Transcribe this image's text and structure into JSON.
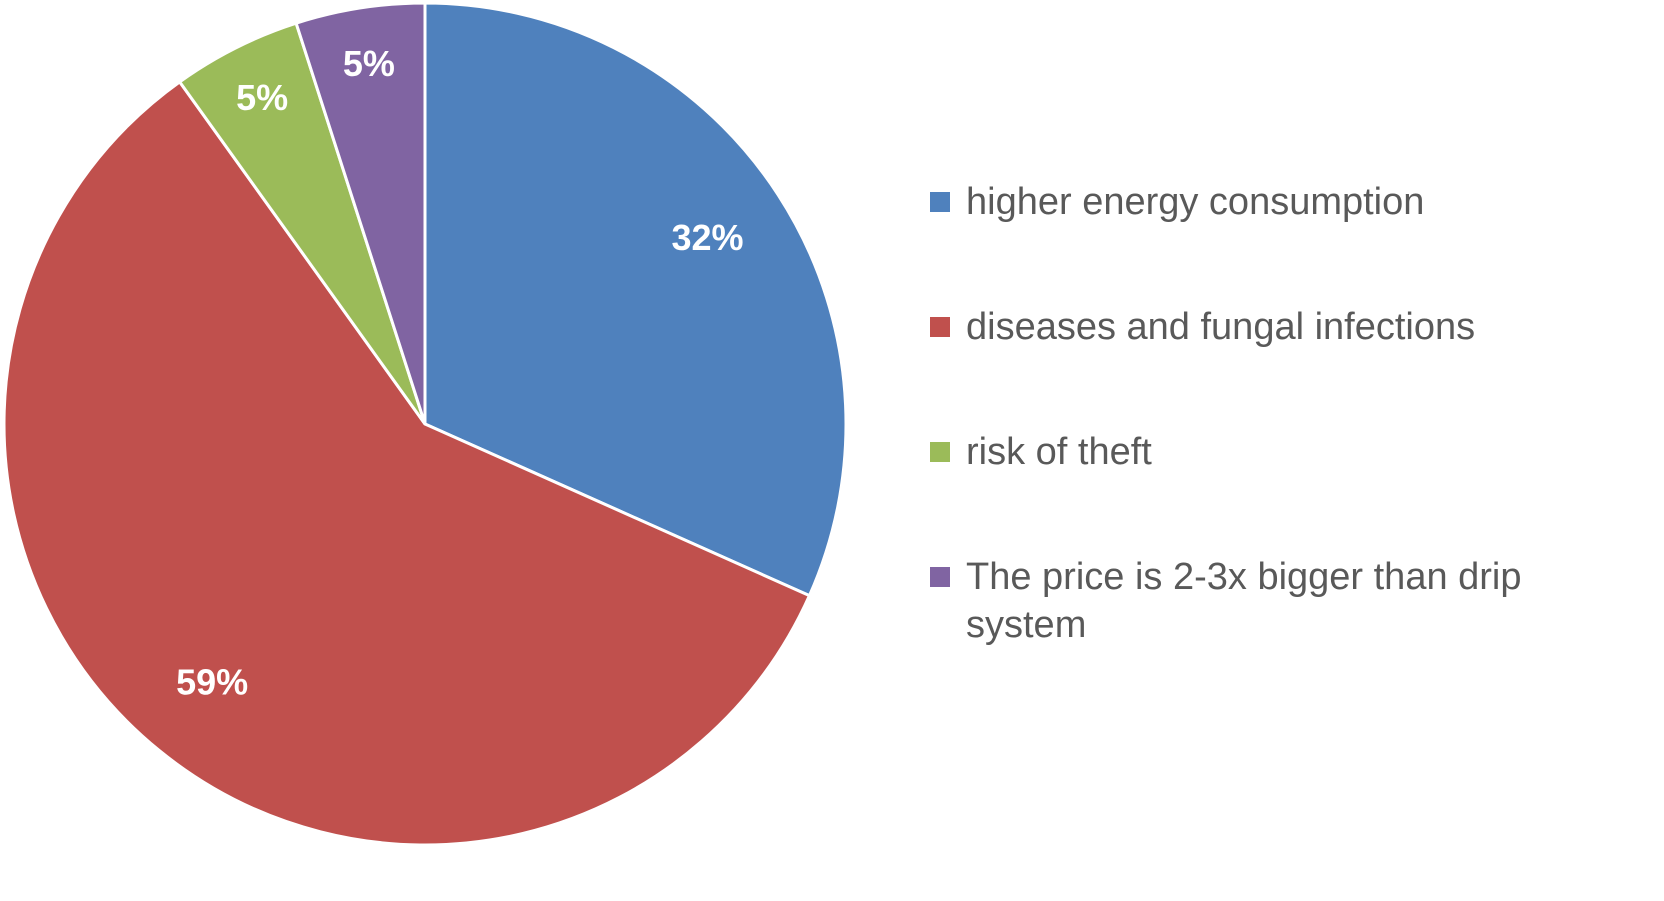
{
  "chart_data": {
    "type": "pie",
    "categories": [
      "higher energy consumption",
      "diseases and fungal infections",
      "risk of theft",
      "The price is 2-3x bigger than drip system"
    ],
    "values": [
      32,
      59,
      5,
      5
    ],
    "value_labels": [
      "32%",
      "59%",
      "5%",
      "5%"
    ],
    "colors": [
      "#4f81bd",
      "#c0504d",
      "#9bbb59",
      "#8064a2"
    ],
    "legend": "right"
  }
}
